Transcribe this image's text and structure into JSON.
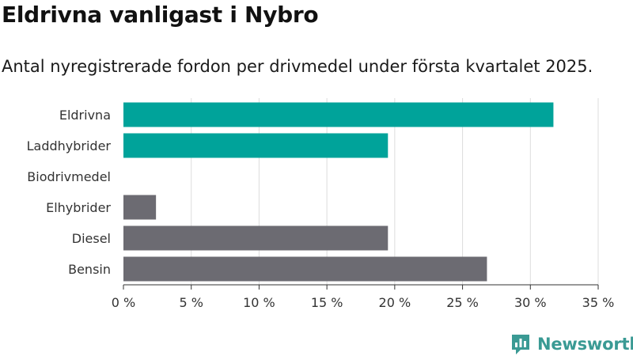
{
  "title": "Eldrivna vanligast i Nybro",
  "subtitle": "Antal nyregistrerade fordon per drivmedel under första kvartalet 2025.",
  "brand": "Newsworthy",
  "colors": {
    "highlight": "#00a39a",
    "base": "#6c6b72",
    "grid": "#dddddd",
    "brand": "#3a9a94"
  },
  "chart_data": {
    "type": "bar",
    "orientation": "horizontal",
    "categories": [
      "Eldrivna",
      "Laddhybrider",
      "Biodrivmedel",
      "Elhybrider",
      "Diesel",
      "Bensin"
    ],
    "values": [
      31.7,
      19.5,
      0,
      2.4,
      19.5,
      26.8
    ],
    "highlighted": [
      true,
      true,
      false,
      false,
      false,
      false
    ],
    "xlim": [
      0,
      35
    ],
    "xticks": [
      0,
      5,
      10,
      15,
      20,
      25,
      30,
      35
    ],
    "xtick_labels": [
      "0 %",
      "5 %",
      "10 %",
      "15 %",
      "20 %",
      "25 %",
      "30 %",
      "35 %"
    ],
    "grid": true
  }
}
